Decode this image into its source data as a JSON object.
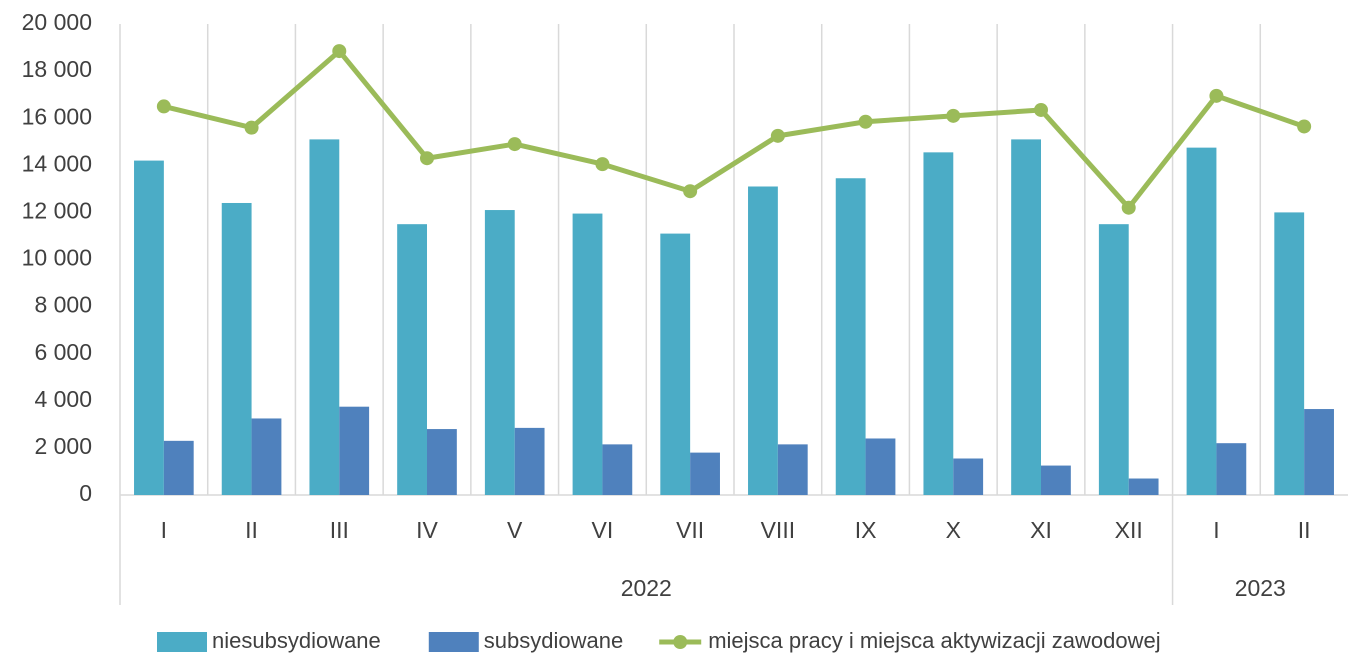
{
  "chart_data": {
    "type": "bar_line",
    "categories": [
      "I",
      "II",
      "III",
      "IV",
      "V",
      "VI",
      "VII",
      "VIII",
      "IX",
      "X",
      "XI",
      "XII",
      "I",
      "II"
    ],
    "category_groups": [
      {
        "label": "2022",
        "count": 12
      },
      {
        "label": "2023",
        "count": 2
      }
    ],
    "series": [
      {
        "name": "niesubsydiowane",
        "type": "bar",
        "color": "#4bacc6",
        "values": [
          14200,
          12400,
          15100,
          11500,
          12100,
          11950,
          11100,
          13100,
          13450,
          14550,
          15100,
          11500,
          14750,
          12000
        ]
      },
      {
        "name": "subsydiowane",
        "type": "bar",
        "color": "#4f81bd",
        "values": [
          2300,
          3250,
          3750,
          2800,
          2850,
          2150,
          1800,
          2150,
          2400,
          1550,
          1250,
          700,
          2200,
          3650
        ]
      },
      {
        "name": "miejsca pracy i miejsca aktywizacji zawodowej",
        "type": "line",
        "color": "#9bbb59",
        "values": [
          16500,
          15600,
          18850,
          14300,
          14900,
          14050,
          12900,
          15250,
          15850,
          16100,
          16350,
          12200,
          16950,
          15650
        ]
      }
    ],
    "ylim": [
      0,
      20000
    ],
    "yticks": [
      0,
      {
        "value": 2000,
        "label": "2 000"
      },
      {
        "value": 4000,
        "label": "4 000"
      },
      {
        "value": 6000,
        "label": "6 000"
      },
      {
        "value": 8000,
        "label": "8 000"
      },
      {
        "value": 10000,
        "label": "10 000"
      },
      {
        "value": 12000,
        "label": "12 000"
      },
      {
        "value": 14000,
        "label": "14 000"
      },
      {
        "value": 16000,
        "label": "16 000"
      },
      {
        "value": 18000,
        "label": "18 000"
      },
      {
        "value": 20000,
        "label": "20 000"
      }
    ],
    "legend": "bottom"
  }
}
